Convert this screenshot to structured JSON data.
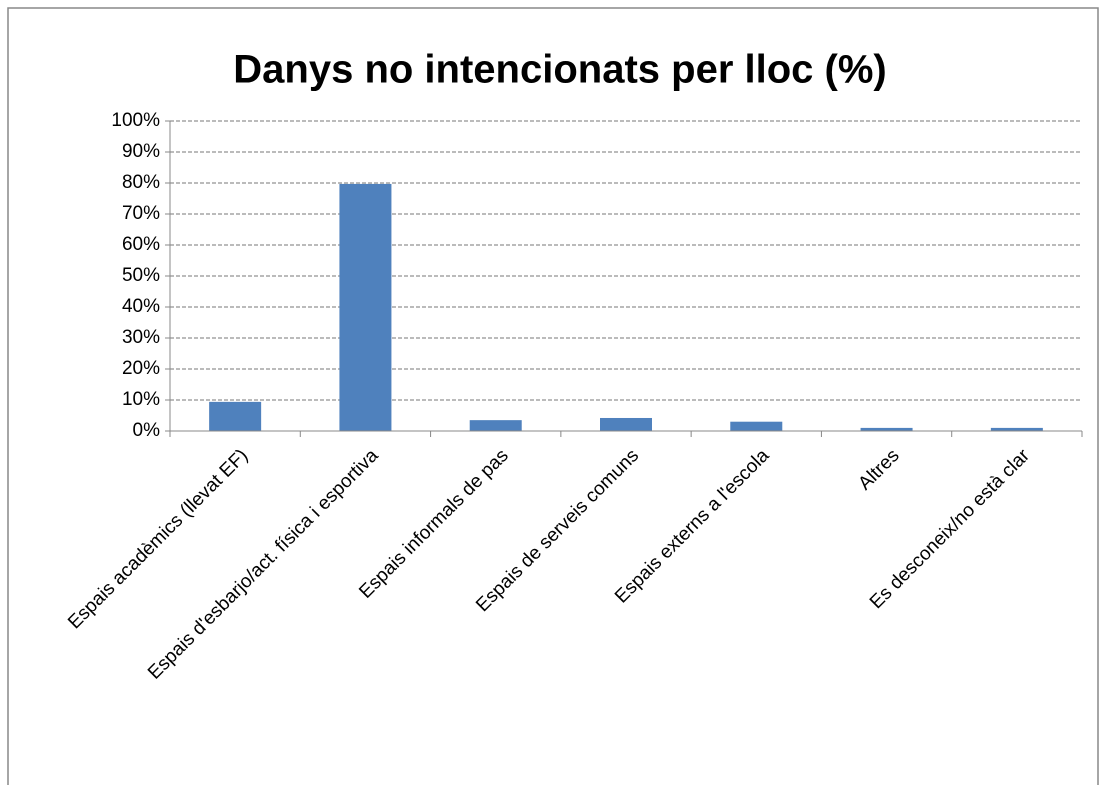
{
  "chart_data": {
    "type": "bar",
    "title": "Danys no intencionats per lloc (%)",
    "categories": [
      "Espais acadèmics (llevat EF)",
      "Espais d'esbarjo/act. física i esportiva",
      "Espais informals de pas",
      "Espais de serveis comuns",
      "Espais externs a l'escola",
      "Altres",
      "Es desconeix/no està clar"
    ],
    "values": [
      9.4,
      79.7,
      3.5,
      4.2,
      3,
      1,
      1
    ],
    "color": "#4f81bd",
    "ylim": [
      0,
      100
    ],
    "yticks": [
      {
        "value": 0,
        "label": "0%"
      },
      {
        "value": 10,
        "label": "10%"
      },
      {
        "value": 20,
        "label": "20%"
      },
      {
        "value": 30,
        "label": "30%"
      },
      {
        "value": 40,
        "label": "40%"
      },
      {
        "value": 50,
        "label": "50%"
      },
      {
        "value": 60,
        "label": "60%"
      },
      {
        "value": 70,
        "label": "70%"
      },
      {
        "value": 80,
        "label": "80%"
      },
      {
        "value": 90,
        "label": "90%"
      },
      {
        "value": 100,
        "label": "100%"
      }
    ],
    "grid": true
  }
}
